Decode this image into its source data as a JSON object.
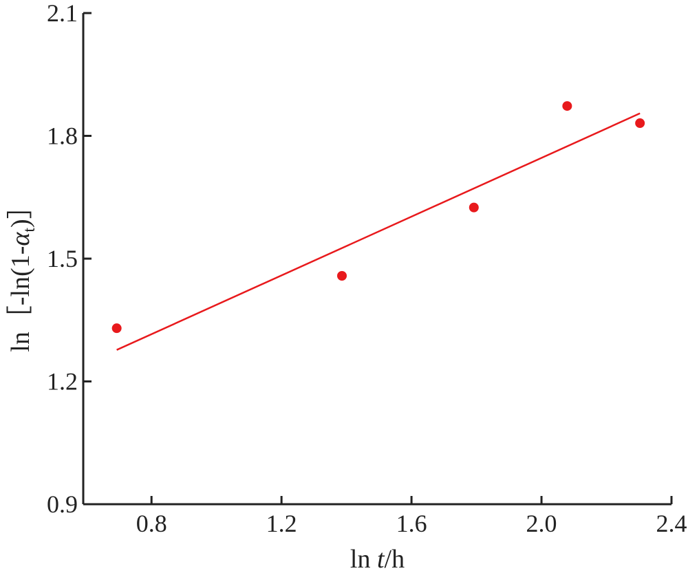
{
  "chart_data": {
    "type": "scatter",
    "title": "",
    "xlabel": {
      "prefix": "ln ",
      "var": "t",
      "suffix": "/h"
    },
    "ylabel": {
      "prefix": "ln［-ln(1-",
      "var": "α",
      "sub": "t",
      "suffix": ")］"
    },
    "xlim": [
      0.59,
      2.4
    ],
    "ylim": [
      0.9,
      2.1
    ],
    "x_ticks": [
      0.8,
      1.2,
      1.6,
      2.0,
      2.4
    ],
    "x_tick_labels": [
      "0.8",
      "1.2",
      "1.6",
      "2.0",
      "2.4"
    ],
    "y_ticks": [
      0.9,
      1.2,
      1.5,
      1.8,
      2.1
    ],
    "y_tick_labels": [
      "0.9",
      "1.2",
      "1.5",
      "1.8",
      "2.1"
    ],
    "grid": false,
    "legend": "none",
    "series": [
      {
        "type": "scatter",
        "x": [
          0.693,
          1.386,
          1.792,
          2.079,
          2.303
        ],
        "y": [
          1.33,
          1.458,
          1.625,
          1.873,
          1.831
        ],
        "color": "#e8191c"
      },
      {
        "type": "line",
        "x": [
          0.693,
          2.303
        ],
        "y": [
          1.277,
          1.855
        ],
        "color": "#e8191c"
      }
    ]
  }
}
